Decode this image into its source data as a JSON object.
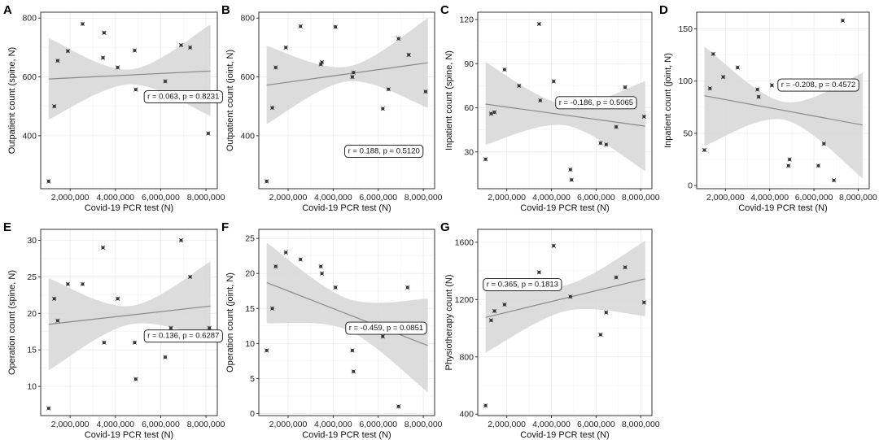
{
  "figure": {
    "chart_data": [
      {
        "panel": "A",
        "type": "scatter",
        "xlabel": "Covid-19 PCR test (N)",
        "ylabel": "Outpatient count (spine, N)",
        "xlim": [
          700000,
          8500000
        ],
        "ylim": [
          220,
          820
        ],
        "xticks": [
          2000000,
          4000000,
          6000000,
          8000000
        ],
        "xtick_labels": [
          "2,000,000",
          "4,000,000",
          "6,000,000",
          "8,000,000"
        ],
        "yticks": [
          400,
          600,
          800
        ],
        "ytick_labels": [
          "400",
          "600",
          "800"
        ],
        "points": [
          [
            1050000,
            245
          ],
          [
            1300000,
            500
          ],
          [
            1450000,
            655
          ],
          [
            1900000,
            688
          ],
          [
            2550000,
            780
          ],
          [
            3450000,
            665
          ],
          [
            3500000,
            750
          ],
          [
            4100000,
            632
          ],
          [
            4850000,
            690
          ],
          [
            4900000,
            557
          ],
          [
            6200000,
            585
          ],
          [
            6450000,
            540
          ],
          [
            6900000,
            708
          ],
          [
            7300000,
            700
          ],
          [
            8100000,
            408
          ]
        ],
        "fit": {
          "x": [
            1050000,
            8200000
          ],
          "y": [
            593,
            620
          ]
        },
        "ci": {
          "x": [
            1050000,
            4650000,
            8200000
          ],
          "lower": [
            455,
            575,
            467
          ],
          "upper": [
            732,
            625,
            778
          ]
        },
        "annotation": "r = 0.063, p = 0.8231",
        "annotation_at": [
          7000000,
          535
        ]
      },
      {
        "panel": "B",
        "type": "scatter",
        "xlabel": "Covid-19 PCR test (N)",
        "ylabel": "Outpatient count (joint, N)",
        "xlim": [
          700000,
          8500000
        ],
        "ylim": [
          220,
          820
        ],
        "xticks": [
          2000000,
          4000000,
          6000000,
          8000000
        ],
        "xtick_labels": [
          "2,000,000",
          "4,000,000",
          "6,000,000",
          "8,000,000"
        ],
        "yticks": [
          400,
          600,
          800
        ],
        "ytick_labels": [
          "400",
          "600",
          "800"
        ],
        "points": [
          [
            1050000,
            245
          ],
          [
            1300000,
            495
          ],
          [
            1450000,
            632
          ],
          [
            1900000,
            700
          ],
          [
            2550000,
            772
          ],
          [
            3450000,
            643
          ],
          [
            3500000,
            650
          ],
          [
            4100000,
            770
          ],
          [
            4850000,
            600
          ],
          [
            4900000,
            615
          ],
          [
            6200000,
            492
          ],
          [
            6450000,
            558
          ],
          [
            6900000,
            730
          ],
          [
            7350000,
            675
          ],
          [
            8100000,
            550
          ]
        ],
        "fit": {
          "x": [
            1050000,
            8200000
          ],
          "y": [
            572,
            648
          ]
        },
        "ci": {
          "x": [
            1050000,
            4650000,
            8200000
          ],
          "lower": [
            440,
            585,
            495
          ],
          "upper": [
            705,
            635,
            800
          ]
        },
        "annotation": "r = 0.188, p = 0.5120",
        "annotation_at": [
          6250000,
          350
        ]
      },
      {
        "panel": "C",
        "type": "scatter",
        "xlabel": "Covid-19 PCR test (N)",
        "ylabel": "Inpatient count (spine, N)",
        "xlim": [
          700000,
          8500000
        ],
        "ylim": [
          5,
          125
        ],
        "xticks": [
          2000000,
          4000000,
          6000000,
          8000000
        ],
        "xtick_labels": [
          "2,000,000",
          "4,000,000",
          "6,000,000",
          "8,000,000"
        ],
        "yticks": [
          30,
          60,
          90,
          120
        ],
        "ytick_labels": [
          "30",
          "60",
          "90",
          "120"
        ],
        "points": [
          [
            1050000,
            25
          ],
          [
            1300000,
            56
          ],
          [
            1450000,
            57
          ],
          [
            1900000,
            86
          ],
          [
            2550000,
            75
          ],
          [
            3450000,
            117
          ],
          [
            3500000,
            65
          ],
          [
            4100000,
            78
          ],
          [
            4850000,
            18
          ],
          [
            4900000,
            11
          ],
          [
            6200000,
            36
          ],
          [
            6450000,
            35
          ],
          [
            6900000,
            47
          ],
          [
            7300000,
            74
          ],
          [
            8150000,
            54
          ]
        ],
        "fit": {
          "x": [
            1050000,
            8200000
          ],
          "y": [
            62.5,
            47.5
          ]
        },
        "ci": {
          "x": [
            1050000,
            4650000,
            8200000
          ],
          "lower": [
            35,
            48,
            17
          ],
          "upper": [
            91,
            62,
            78
          ]
        },
        "annotation": "r = -0.186, p = 0.5065",
        "annotation_at": [
          6000000,
          64
        ]
      },
      {
        "panel": "D",
        "type": "scatter",
        "xlabel": "Covid-19 PCR test (N)",
        "ylabel": "Inpatient count (joint, N)",
        "xlim": [
          700000,
          8500000
        ],
        "ylim": [
          -3,
          166
        ],
        "xticks": [
          2000000,
          4000000,
          6000000,
          8000000
        ],
        "xtick_labels": [
          "2,000,000",
          "4,000,000",
          "6,000,000",
          "8,000,000"
        ],
        "yticks": [
          0,
          50,
          100,
          150
        ],
        "ytick_labels": [
          "0",
          "50",
          "100",
          "150"
        ],
        "points": [
          [
            1050000,
            34
          ],
          [
            1300000,
            93
          ],
          [
            1450000,
            126
          ],
          [
            1900000,
            104
          ],
          [
            2550000,
            113
          ],
          [
            3450000,
            92
          ],
          [
            3500000,
            85
          ],
          [
            4100000,
            96
          ],
          [
            4850000,
            19
          ],
          [
            4900000,
            25
          ],
          [
            6200000,
            19
          ],
          [
            6450000,
            40
          ],
          [
            6900000,
            5
          ],
          [
            7300000,
            158
          ]
        ],
        "fit": {
          "x": [
            1050000,
            8200000
          ],
          "y": [
            86,
            58
          ]
        },
        "ci": {
          "x": [
            1050000,
            4650000,
            8200000
          ],
          "lower": [
            38,
            63,
            7
          ],
          "upper": [
            133,
            80,
            108
          ]
        },
        "annotation": "r = -0.208, p = 0.4572",
        "annotation_at": [
          6200000,
          97
        ]
      },
      {
        "panel": "E",
        "type": "scatter",
        "xlabel": "Covid-19 PCR test (N)",
        "ylabel": "Operation count (spine, N)",
        "xlim": [
          700000,
          8500000
        ],
        "ylim": [
          6,
          31.5
        ],
        "xticks": [
          2000000,
          4000000,
          6000000,
          8000000
        ],
        "xtick_labels": [
          "2,000,000",
          "4,000,000",
          "6,000,000",
          "8,000,000"
        ],
        "yticks": [
          10,
          15,
          20,
          25,
          30
        ],
        "ytick_labels": [
          "10",
          "15",
          "20",
          "25",
          "30"
        ],
        "points": [
          [
            1050000,
            7
          ],
          [
            1300000,
            22
          ],
          [
            1450000,
            19
          ],
          [
            1900000,
            24
          ],
          [
            2550000,
            24
          ],
          [
            3450000,
            29
          ],
          [
            3500000,
            16
          ],
          [
            4100000,
            22
          ],
          [
            4850000,
            16
          ],
          [
            4900000,
            11
          ],
          [
            6200000,
            14
          ],
          [
            6450000,
            18
          ],
          [
            6900000,
            30
          ],
          [
            7300000,
            25
          ],
          [
            8150000,
            18
          ]
        ],
        "fit": {
          "x": [
            1050000,
            8200000
          ],
          "y": [
            18.5,
            21.0
          ]
        },
        "ci": {
          "x": [
            1050000,
            4650000,
            8200000
          ],
          "lower": [
            12.2,
            18.5,
            16.6
          ],
          "upper": [
            24.8,
            21.0,
            27.1
          ]
        },
        "annotation": "r = 0.136, p = 0.6287",
        "annotation_at": [
          7000000,
          17
        ]
      },
      {
        "panel": "F",
        "type": "scatter",
        "xlabel": "Covid-19 PCR test (N)",
        "ylabel": "Operation count (joint, N)",
        "xlim": [
          700000,
          8500000
        ],
        "ylim": [
          -0.3,
          26.3
        ],
        "xticks": [
          2000000,
          4000000,
          6000000,
          8000000
        ],
        "xtick_labels": [
          "2,000,000",
          "4,000,000",
          "6,000,000",
          "8,000,000"
        ],
        "yticks": [
          0,
          5,
          10,
          15,
          20,
          25
        ],
        "ytick_labels": [
          "0",
          "5",
          "10",
          "15",
          "20",
          "25"
        ],
        "points": [
          [
            1050000,
            9
          ],
          [
            1300000,
            15
          ],
          [
            1450000,
            21
          ],
          [
            1900000,
            23
          ],
          [
            2550000,
            22
          ],
          [
            3450000,
            21
          ],
          [
            3500000,
            20
          ],
          [
            4100000,
            18
          ],
          [
            4850000,
            9
          ],
          [
            4900000,
            6
          ],
          [
            6200000,
            11
          ],
          [
            6900000,
            1
          ],
          [
            7300000,
            18
          ]
        ],
        "fit": {
          "x": [
            1050000,
            8200000
          ],
          "y": [
            18.7,
            9.7
          ]
        },
        "ci": {
          "x": [
            1050000,
            4650000,
            8200000
          ],
          "lower": [
            12.9,
            11.9,
            3.0
          ],
          "upper": [
            24.4,
            16.4,
            16.4
          ]
        },
        "annotation": "r = -0.459, p = 0.0851",
        "annotation_at": [
          6350000,
          12.3
        ]
      },
      {
        "panel": "G",
        "type": "scatter",
        "xlabel": "Covid-19 PCR test (N)",
        "ylabel": "Physiotherapy count (N)",
        "xlim": [
          700000,
          8500000
        ],
        "ylim": [
          390,
          1690
        ],
        "xticks": [
          2000000,
          4000000,
          6000000,
          8000000
        ],
        "xtick_labels": [
          "2,000,000",
          "4,000,000",
          "6,000,000",
          "8,000,000"
        ],
        "yticks": [
          400,
          800,
          1200,
          1600
        ],
        "ytick_labels": [
          "400",
          "800",
          "1200",
          "1600"
        ],
        "points": [
          [
            1050000,
            460
          ],
          [
            1300000,
            1055
          ],
          [
            1450000,
            1120
          ],
          [
            1900000,
            1165
          ],
          [
            3450000,
            1390
          ],
          [
            4100000,
            1575
          ],
          [
            4850000,
            1220
          ],
          [
            6200000,
            955
          ],
          [
            6450000,
            1110
          ],
          [
            6900000,
            1355
          ],
          [
            7300000,
            1425
          ],
          [
            8150000,
            1180
          ]
        ],
        "fit": {
          "x": [
            1050000,
            8200000
          ],
          "y": [
            1075,
            1345
          ]
        },
        "ci": {
          "x": [
            1050000,
            4650000,
            8200000
          ],
          "lower": [
            830,
            1120,
            1085
          ],
          "upper": [
            1320,
            1300,
            1610
          ]
        },
        "annotation": "r = 0.365, p = 0.1813",
        "annotation_at": [
          2700000,
          1310
        ]
      }
    ]
  }
}
